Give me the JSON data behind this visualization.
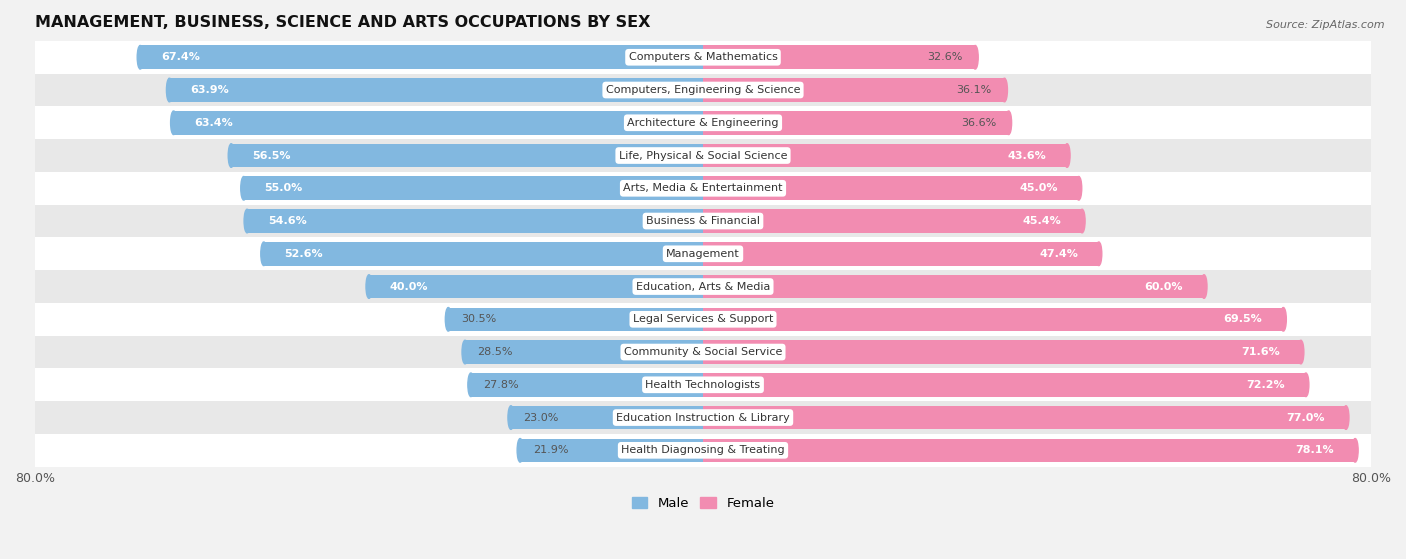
{
  "title": "MANAGEMENT, BUSINESS, SCIENCE AND ARTS OCCUPATIONS BY SEX",
  "source": "Source: ZipAtlas.com",
  "categories": [
    "Computers & Mathematics",
    "Computers, Engineering & Science",
    "Architecture & Engineering",
    "Life, Physical & Social Science",
    "Arts, Media & Entertainment",
    "Business & Financial",
    "Management",
    "Education, Arts & Media",
    "Legal Services & Support",
    "Community & Social Service",
    "Health Technologists",
    "Education Instruction & Library",
    "Health Diagnosing & Treating"
  ],
  "male_pct": [
    67.4,
    63.9,
    63.4,
    56.5,
    55.0,
    54.6,
    52.6,
    40.0,
    30.5,
    28.5,
    27.8,
    23.0,
    21.9
  ],
  "female_pct": [
    32.6,
    36.1,
    36.6,
    43.6,
    45.0,
    45.4,
    47.4,
    60.0,
    69.5,
    71.6,
    72.2,
    77.0,
    78.1
  ],
  "male_color": "#82b8e0",
  "female_color": "#f28cb1",
  "bg_color": "#f2f2f2",
  "row_bg_even": "#ffffff",
  "row_bg_odd": "#e8e8e8",
  "bar_height": 0.72,
  "xlim": 80.0,
  "label_fontsize": 8.0,
  "cat_fontsize": 8.0,
  "title_fontsize": 11.5,
  "legend_fontsize": 9.5,
  "source_fontsize": 8.0
}
